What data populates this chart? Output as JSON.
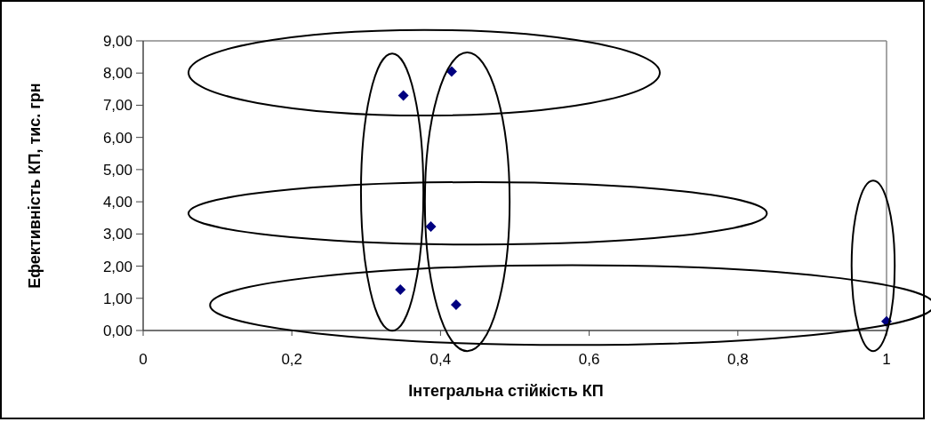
{
  "chart_data": {
    "type": "scatter",
    "xlabel": "Інтегральна стійкість КП",
    "ylabel": "Ефективність КП, тис. грн",
    "x": [
      0.35,
      0.415,
      0.387,
      0.346,
      0.421,
      1.0
    ],
    "values": [
      7.3,
      8.05,
      3.23,
      1.27,
      0.8,
      0.28
    ],
    "color": "#000080",
    "marker": "diamond",
    "xlim": [
      0,
      1
    ],
    "xticks": [
      0,
      {
        "value": 0.2,
        "label": "0,2"
      },
      {
        "value": 0.4,
        "label": "0,4"
      },
      {
        "value": 0.6,
        "label": "0,6"
      },
      {
        "value": 0.8,
        "label": "0,8"
      },
      1
    ],
    "ylim": [
      0,
      9
    ],
    "yticks": [
      {
        "value": 0,
        "label": "0,00"
      },
      {
        "value": 1,
        "label": "1,00"
      },
      {
        "value": 2,
        "label": "2,00"
      },
      {
        "value": 3,
        "label": "3,00"
      },
      {
        "value": 4,
        "label": "4,00"
      },
      {
        "value": 5,
        "label": "5,00"
      },
      {
        "value": 6,
        "label": "6,00"
      },
      {
        "value": 7,
        "label": "7,00"
      },
      {
        "value": 8,
        "label": "8,00"
      },
      {
        "value": 9,
        "label": "9,00"
      }
    ],
    "tick_labels": true
  }
}
